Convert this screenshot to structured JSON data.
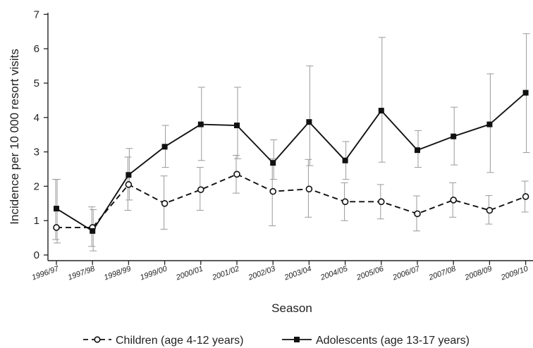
{
  "chart_data": {
    "type": "line",
    "xlabel": "Season",
    "ylabel": "Incidence per 10 000 resort visits",
    "ylim": [
      0,
      7
    ],
    "yticks": [
      "0",
      "1",
      "2",
      "3",
      "4",
      "5",
      "6",
      "7"
    ],
    "categories": [
      "1996/97",
      "1997/98",
      "1998/99",
      "1999/00",
      "2000/01",
      "2001/02",
      "2002/03",
      "2003/04",
      "2004/05",
      "2005/06",
      "2006/07",
      "2007/08",
      "2008/09",
      "2009/10"
    ],
    "grid": false,
    "legend_position": "bottom",
    "series": [
      {
        "name": "Children (age 4-12 years)",
        "style": "dashed",
        "marker": "hollow-circle",
        "color": "#111111",
        "values": [
          0.8,
          0.8,
          2.05,
          1.5,
          1.9,
          2.35,
          1.85,
          1.92,
          1.55,
          1.55,
          1.2,
          1.6,
          1.3,
          1.7
        ],
        "lower": [
          0.45,
          0.25,
          1.3,
          0.75,
          1.3,
          1.8,
          0.85,
          1.1,
          1.0,
          1.05,
          0.7,
          1.1,
          0.9,
          1.25
        ],
        "upper": [
          2.2,
          1.4,
          2.85,
          2.3,
          2.55,
          2.9,
          2.8,
          2.78,
          2.1,
          2.05,
          1.72,
          2.1,
          1.73,
          2.15
        ]
      },
      {
        "name": "Adolescents (age 13-17 years)",
        "style": "solid",
        "marker": "filled-square",
        "color": "#111111",
        "values": [
          1.35,
          0.7,
          2.33,
          3.15,
          3.8,
          3.77,
          2.68,
          3.87,
          2.75,
          4.2,
          3.05,
          3.45,
          3.8,
          4.72
        ],
        "lower": [
          0.35,
          0.12,
          1.6,
          2.55,
          2.75,
          2.8,
          2.2,
          2.6,
          2.2,
          2.7,
          2.55,
          2.62,
          2.4,
          2.98
        ],
        "upper": [
          2.2,
          1.32,
          3.1,
          3.77,
          4.88,
          4.88,
          3.35,
          5.5,
          3.3,
          6.33,
          3.62,
          4.3,
          5.27,
          6.44
        ]
      }
    ]
  }
}
